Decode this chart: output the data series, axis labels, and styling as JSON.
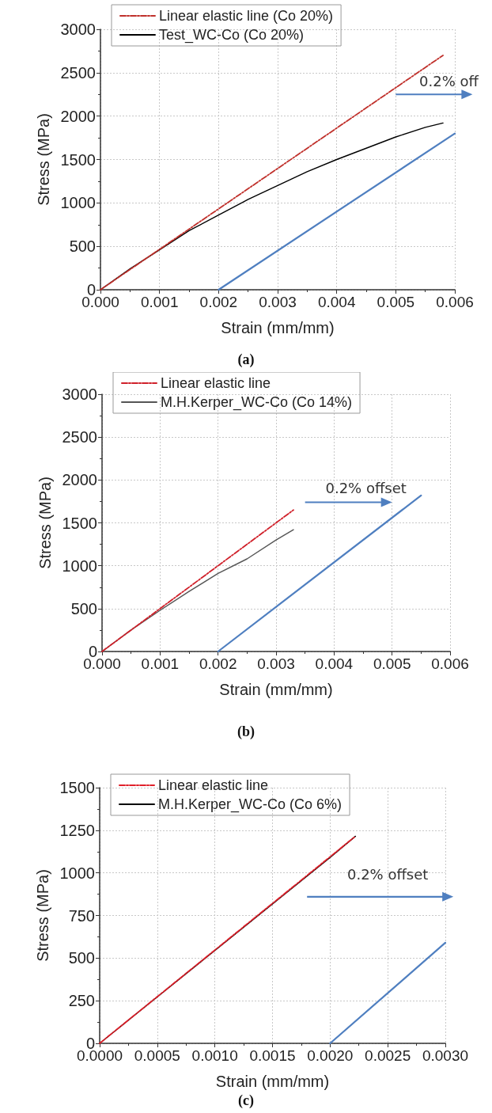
{
  "chart_data": [
    {
      "type": "line",
      "title": "(a)",
      "xlabel": "Strain (mm/mm)",
      "ylabel": "Stress (MPa)",
      "annotations": [
        "0.2% off"
      ],
      "xlim": [
        0,
        0.006
      ],
      "xticks": [
        {
          "value": 0,
          "label": "0.000"
        },
        {
          "value": 0.001,
          "label": "0.001"
        },
        {
          "value": 0.002,
          "label": "0.002"
        },
        {
          "value": 0.003,
          "label": "0.003"
        },
        {
          "value": 0.004,
          "label": "0.004"
        },
        {
          "value": 0.005,
          "label": "0.005"
        },
        {
          "value": 0.006,
          "label": "0.006"
        }
      ],
      "ylim": [
        0,
        3000
      ],
      "yticks": [
        0,
        500,
        1000,
        1500,
        2000,
        2500,
        3000
      ],
      "grid": true,
      "legend": "top left",
      "marker": "none",
      "series": [
        {
          "name": "Linear elastic line (Co 20%)",
          "color": "#c0302b",
          "line_style": "dashed",
          "x": [
            0,
            0.0058
          ],
          "values": [
            0,
            2700
          ]
        },
        {
          "name": "Test_WC-Co (Co 20%)",
          "color": "#000000",
          "line_style": "solid",
          "x": [
            0,
            0.0005,
            0.001,
            0.0015,
            0.002,
            0.0025,
            0.003,
            0.0035,
            0.004,
            0.0045,
            0.005,
            0.0055,
            0.0058
          ],
          "values": [
            0,
            240,
            460,
            680,
            860,
            1040,
            1200,
            1360,
            1500,
            1630,
            1760,
            1870,
            1920
          ]
        },
        {
          "color": "#4f7fc0",
          "line_style": "solid",
          "x": [
            0.002,
            0.006
          ],
          "values": [
            0,
            1800
          ]
        }
      ]
    },
    {
      "type": "line",
      "title": "(b)",
      "xlabel": "Strain (mm/mm)",
      "ylabel": "Stress (MPa)",
      "annotations": [
        "0.2% offset"
      ],
      "xlim": [
        0,
        0.006
      ],
      "xticks": [
        {
          "value": 0,
          "label": "0.000"
        },
        {
          "value": 0.001,
          "label": "0.001"
        },
        {
          "value": 0.002,
          "label": "0.002"
        },
        {
          "value": 0.003,
          "label": "0.003"
        },
        {
          "value": 0.004,
          "label": "0.004"
        },
        {
          "value": 0.005,
          "label": "0.005"
        },
        {
          "value": 0.006,
          "label": "0.006"
        }
      ],
      "ylim": [
        0,
        3000
      ],
      "yticks": [
        0,
        500,
        1000,
        1500,
        2000,
        2500,
        3000
      ],
      "grid": true,
      "legend": "top left",
      "marker": "none",
      "series": [
        {
          "name": "Linear elastic line",
          "color": "#d0202a",
          "line_style": "dashed",
          "x": [
            0,
            0.0033
          ],
          "values": [
            0,
            1650
          ]
        },
        {
          "name": "M.H.Kerper_WC-Co (Co 14%)",
          "color": "#555555",
          "line_style": "solid",
          "x": [
            0,
            0.0005,
            0.001,
            0.0015,
            0.002,
            0.0025,
            0.003,
            0.0033
          ],
          "values": [
            0,
            250,
            480,
            700,
            910,
            1080,
            1300,
            1420
          ]
        },
        {
          "color": "#4f7fc0",
          "line_style": "solid",
          "x": [
            0.002,
            0.0055
          ],
          "values": [
            0,
            1820
          ]
        }
      ]
    },
    {
      "type": "line",
      "title": "(c)",
      "xlabel": "Strain (mm/mm)",
      "ylabel": "Stress (MPa)",
      "annotations": [
        "0.2% offset"
      ],
      "xlim": [
        0,
        0.003
      ],
      "xticks": [
        {
          "value": 0,
          "label": "0.0000"
        },
        {
          "value": 0.0005,
          "label": "0.0005"
        },
        {
          "value": 0.001,
          "label": "0.0010"
        },
        {
          "value": 0.0015,
          "label": "0.0015"
        },
        {
          "value": 0.002,
          "label": "0.0020"
        },
        {
          "value": 0.0025,
          "label": "0.0025"
        },
        {
          "value": 0.003,
          "label": "0.0030"
        }
      ],
      "ylim": [
        0,
        1500
      ],
      "yticks": [
        0,
        250,
        500,
        750,
        1000,
        1250,
        1500
      ],
      "grid": true,
      "legend": "top left",
      "marker": "none",
      "series": [
        {
          "name": "Linear elastic line",
          "color": "#e0202a",
          "line_style": "dashed",
          "x": [
            0,
            0.00222
          ],
          "values": [
            0,
            1215
          ]
        },
        {
          "name": "M.H.Kerper_WC-Co (Co 6%)",
          "color": "#000000",
          "line_style": "solid",
          "x": [
            0,
            0.001,
            0.002,
            0.00222
          ],
          "values": [
            0,
            545,
            1090,
            1215
          ]
        },
        {
          "color": "#4f7fc0",
          "line_style": "solid",
          "x": [
            0.002,
            0.003
          ],
          "values": [
            0,
            590
          ]
        }
      ]
    }
  ]
}
